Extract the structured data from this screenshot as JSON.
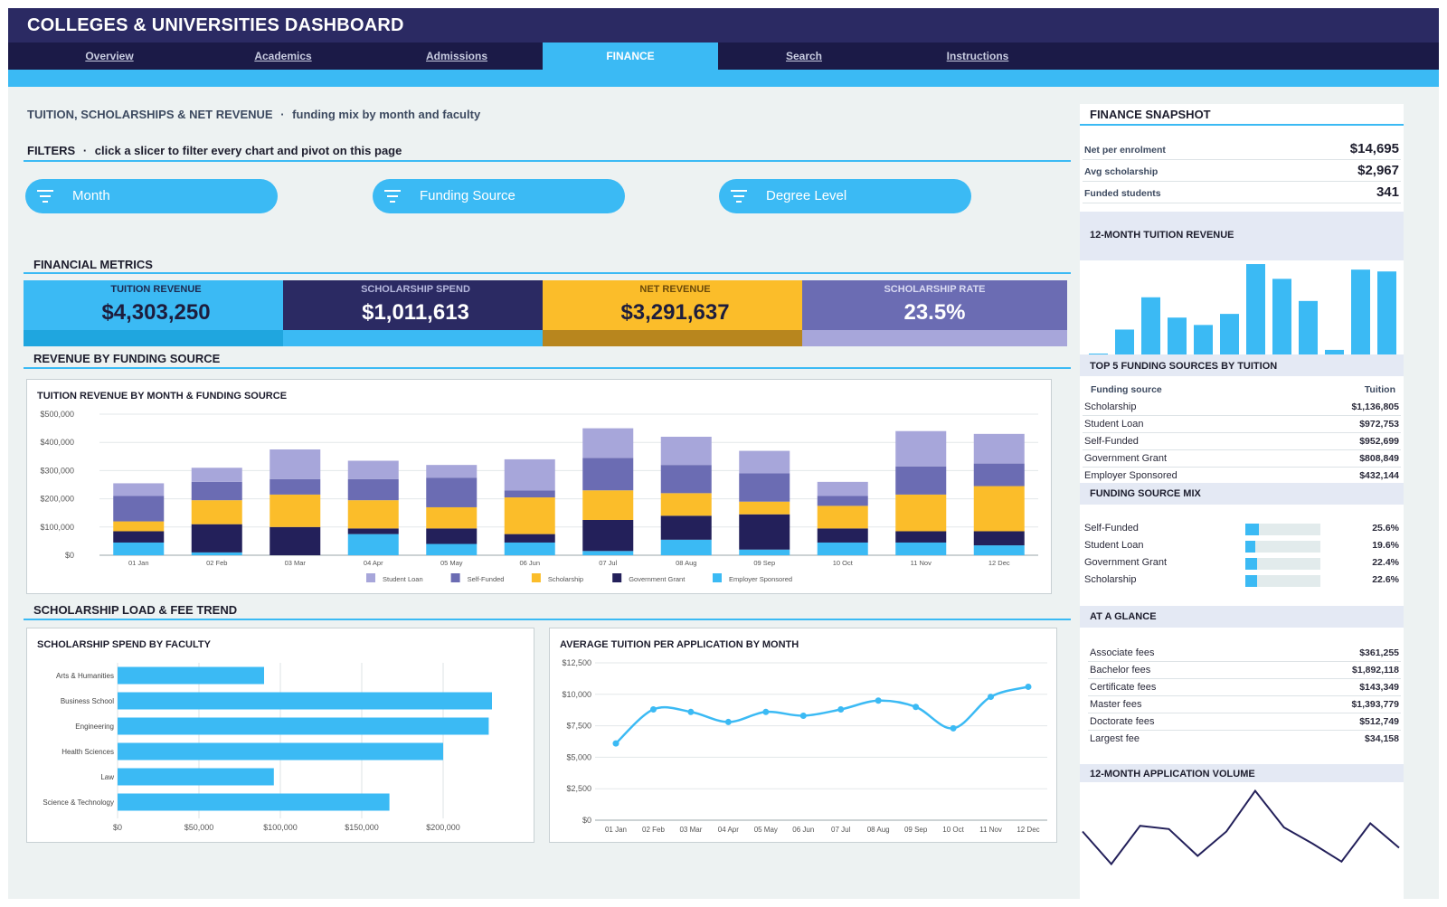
{
  "app": {
    "title": "COLLEGES & UNIVERSITIES DASHBOARD"
  },
  "nav": {
    "tabs": [
      {
        "label": "Overview",
        "active": false
      },
      {
        "label": "Academics",
        "active": false
      },
      {
        "label": "Admissions",
        "active": false
      },
      {
        "label": "FINANCE",
        "active": true
      },
      {
        "label": "Search",
        "active": false
      },
      {
        "label": "Instructions",
        "active": false
      }
    ]
  },
  "page": {
    "title": "TUITION, SCHOLARSHIPS & NET REVENUE",
    "separator": "·",
    "subtitle": "funding mix by month and faculty"
  },
  "filters": {
    "heading": "FILTERS",
    "separator": "·",
    "description": "click a slicer to filter every chart and pivot on this page",
    "slicers": [
      "Month",
      "Funding Source",
      "Degree Level"
    ],
    "icon": "filter-icon"
  },
  "metrics": {
    "heading": "FINANCIAL METRICS",
    "kpis": [
      {
        "label": "TUITION REVENUE",
        "value": "$4,303,250",
        "color": "#3bbaf4"
      },
      {
        "label": "SCHOLARSHIP SPEND",
        "value": "$1,011,613",
        "color": "#2b2a63"
      },
      {
        "label": "NET REVENUE",
        "value": "$3,291,637",
        "color": "#fbbd2a"
      },
      {
        "label": "SCHOLARSHIP RATE",
        "value": "23.5%",
        "color": "#6b6cb3"
      }
    ]
  },
  "sections": {
    "revenue": "REVENUE BY FUNDING SOURCE",
    "scholarship": "SCHOLARSHIP LOAD & FEE TREND"
  },
  "colors": {
    "accent": "#3bbaf4",
    "navy": "#2b2a63",
    "gold": "#fbbd2a",
    "lavender": "#a7a6da",
    "purple": "#6b6cb3"
  },
  "chart_data": [
    {
      "type": "bar",
      "stacked": true,
      "title": "TUITION REVENUE BY MONTH & FUNDING SOURCE",
      "categories": [
        "01 Jan",
        "02 Feb",
        "03 Mar",
        "04 Apr",
        "05 May",
        "06 Jun",
        "07 Jul",
        "08 Aug",
        "09 Sep",
        "10 Oct",
        "11 Nov",
        "12 Dec"
      ],
      "series": [
        {
          "name": "Employer Sponsored",
          "color": "#3bbaf4",
          "values": [
            45000,
            10000,
            0,
            75000,
            40000,
            45000,
            15000,
            55000,
            20000,
            45000,
            45000,
            35000
          ]
        },
        {
          "name": "Government Grant",
          "color": "#23205a",
          "values": [
            40000,
            100000,
            100000,
            20000,
            55000,
            30000,
            110000,
            85000,
            125000,
            50000,
            40000,
            50000
          ]
        },
        {
          "name": "Scholarship",
          "color": "#fbbd2a",
          "values": [
            35000,
            85000,
            115000,
            100000,
            75000,
            130000,
            105000,
            80000,
            45000,
            80000,
            130000,
            160000
          ]
        },
        {
          "name": "Self-Funded",
          "color": "#6b6cb3",
          "values": [
            90000,
            65000,
            55000,
            75000,
            105000,
            25000,
            115000,
            100000,
            100000,
            35000,
            100000,
            80000
          ]
        },
        {
          "name": "Student Loan",
          "color": "#a7a6da",
          "values": [
            45000,
            50000,
            105000,
            65000,
            45000,
            110000,
            105000,
            100000,
            80000,
            50000,
            125000,
            105000
          ]
        }
      ],
      "legend_order": [
        "Student Loan",
        "Self-Funded",
        "Scholarship",
        "Government Grant",
        "Employer Sponsored"
      ],
      "yticks": [
        "$0",
        "$100,000",
        "$200,000",
        "$300,000",
        "$400,000",
        "$500,000"
      ],
      "ylim": [
        0,
        500000
      ],
      "legend": "bottom",
      "grid": true
    },
    {
      "type": "bar",
      "orientation": "horizontal",
      "title": "SCHOLARSHIP SPEND BY FACULTY",
      "categories": [
        "Arts & Humanities",
        "Business School",
        "Engineering",
        "Health Sciences",
        "Law",
        "Science & Technology"
      ],
      "values": [
        90000,
        230000,
        228000,
        200000,
        96000,
        167000
      ],
      "xticks": [
        "$0",
        "$50,000",
        "$100,000",
        "$150,000",
        "$200,000"
      ],
      "xlim": [
        0,
        250000
      ],
      "grid": true
    },
    {
      "type": "line",
      "title": "AVERAGE TUITION PER APPLICATION BY MONTH",
      "categories": [
        "01 Jan",
        "02 Feb",
        "03 Mar",
        "04 Apr",
        "05 May",
        "06 Jun",
        "07 Jul",
        "08 Aug",
        "09 Sep",
        "10 Oct",
        "11 Nov",
        "12 Dec"
      ],
      "values": [
        6100,
        8800,
        8600,
        7800,
        8600,
        8300,
        8800,
        9500,
        9000,
        7300,
        9800,
        10600
      ],
      "yticks": [
        "$0",
        "$2,500",
        "$5,000",
        "$7,500",
        "$10,000",
        "$12,500"
      ],
      "ylim": [
        0,
        12500
      ],
      "grid": true
    },
    {
      "type": "bar",
      "title": "12-MONTH TUITION REVENUE",
      "values": [
        1,
        27,
        62,
        40,
        32,
        44,
        98,
        82,
        58,
        5,
        92,
        90
      ],
      "ylim": [
        0,
        100
      ]
    },
    {
      "type": "line",
      "title": "12-MONTH APPLICATION VOLUME",
      "values": [
        45,
        5,
        52,
        48,
        15,
        45,
        95,
        50,
        30,
        8,
        55,
        25
      ],
      "ylim": [
        0,
        100
      ]
    }
  ],
  "sidebar": {
    "snapshot": {
      "heading": "FINANCE SNAPSHOT",
      "rows": [
        {
          "label": "Net per enrolment",
          "value": "$14,695"
        },
        {
          "label": "Avg scholarship",
          "value": "$2,967"
        },
        {
          "label": "Funded students",
          "value": "341"
        }
      ]
    },
    "spark_bar_title": "12-MONTH TUITION REVENUE",
    "top5": {
      "heading": "TOP 5 FUNDING SOURCES BY TUITION",
      "col1": "Funding source",
      "col2": "Tuition",
      "rows": [
        {
          "label": "Scholarship",
          "value": "$1,136,805"
        },
        {
          "label": "Student Loan",
          "value": "$972,753"
        },
        {
          "label": "Self-Funded",
          "value": "$952,699"
        },
        {
          "label": "Government Grant",
          "value": "$808,849"
        },
        {
          "label": "Employer Sponsored",
          "value": "$432,144"
        }
      ]
    },
    "mix": {
      "heading": "FUNDING SOURCE MIX",
      "rows": [
        {
          "label": "Self-Funded",
          "value": "25.6%",
          "fraction": 0.256
        },
        {
          "label": "Student Loan",
          "value": "19.6%",
          "fraction": 0.196
        },
        {
          "label": "Government Grant",
          "value": "22.4%",
          "fraction": 0.224
        },
        {
          "label": "Scholarship",
          "value": "22.6%",
          "fraction": 0.226
        }
      ]
    },
    "glance": {
      "heading": "AT A GLANCE",
      "rows": [
        {
          "label": "Associate fees",
          "value": "$361,255"
        },
        {
          "label": "Bachelor fees",
          "value": "$1,892,118"
        },
        {
          "label": "Certificate fees",
          "value": "$143,349"
        },
        {
          "label": "Master fees",
          "value": "$1,393,779"
        },
        {
          "label": "Doctorate fees",
          "value": "$512,749"
        },
        {
          "label": "Largest fee",
          "value": "$34,158"
        }
      ]
    },
    "spark_line_title": "12-MONTH APPLICATION VOLUME"
  }
}
